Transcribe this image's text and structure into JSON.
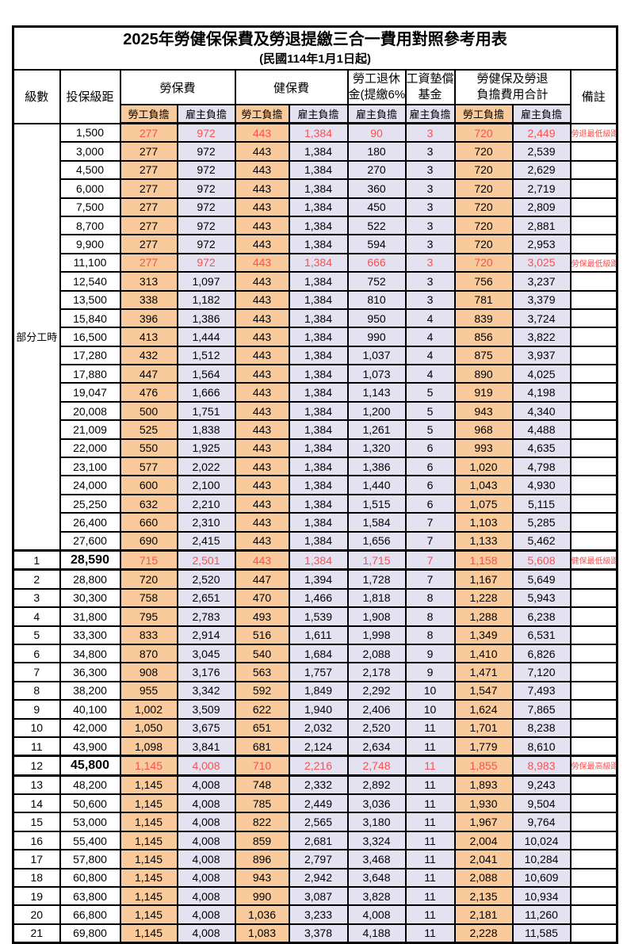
{
  "title": "2025年勞健保保費及勞退提繳三合一費用對照參考用表",
  "subtitle": "(民國114年1月1日起)",
  "colors": {
    "employee_col_bg": "#F9CB9C",
    "employer_col_bg": "#E4E1F1",
    "highlight_red": "#F85151",
    "border": "#000000"
  },
  "header": {
    "level": "級數",
    "salary": "投保級距",
    "labor_insurance": "勞保費",
    "health_insurance": "健保費",
    "pension_line1": "勞工退休",
    "pension_line2": "金(提繳6%)",
    "wage_fund_line1": "工資墊償",
    "wage_fund_line2": "基金",
    "total_line1": "勞健保及勞退",
    "total_line2": "負擔費用合計",
    "remark": "備註",
    "employee": "勞工負擔",
    "employer": "雇主負擔"
  },
  "part_time": {
    "label": "部分工時",
    "span": 23
  },
  "rows": [
    {
      "lv": "",
      "sal": "1,500",
      "v": [
        "277",
        "972",
        "443",
        "1,384",
        "90",
        "3",
        "720",
        "2,449"
      ],
      "note": "勞退最低級距",
      "red": true
    },
    {
      "lv": "",
      "sal": "3,000",
      "v": [
        "277",
        "972",
        "443",
        "1,384",
        "180",
        "3",
        "720",
        "2,539"
      ],
      "note": ""
    },
    {
      "lv": "",
      "sal": "4,500",
      "v": [
        "277",
        "972",
        "443",
        "1,384",
        "270",
        "3",
        "720",
        "2,629"
      ],
      "note": ""
    },
    {
      "lv": "",
      "sal": "6,000",
      "v": [
        "277",
        "972",
        "443",
        "1,384",
        "360",
        "3",
        "720",
        "2,719"
      ],
      "note": ""
    },
    {
      "lv": "",
      "sal": "7,500",
      "v": [
        "277",
        "972",
        "443",
        "1,384",
        "450",
        "3",
        "720",
        "2,809"
      ],
      "note": ""
    },
    {
      "lv": "",
      "sal": "8,700",
      "v": [
        "277",
        "972",
        "443",
        "1,384",
        "522",
        "3",
        "720",
        "2,881"
      ],
      "note": ""
    },
    {
      "lv": "",
      "sal": "9,900",
      "v": [
        "277",
        "972",
        "443",
        "1,384",
        "594",
        "3",
        "720",
        "2,953"
      ],
      "note": ""
    },
    {
      "lv": "",
      "sal": "11,100",
      "v": [
        "277",
        "972",
        "443",
        "1,384",
        "666",
        "3",
        "720",
        "3,025"
      ],
      "note": "勞保最低級距",
      "red": true
    },
    {
      "lv": "",
      "sal": "12,540",
      "v": [
        "313",
        "1,097",
        "443",
        "1,384",
        "752",
        "3",
        "756",
        "3,237"
      ],
      "note": ""
    },
    {
      "lv": "",
      "sal": "13,500",
      "v": [
        "338",
        "1,182",
        "443",
        "1,384",
        "810",
        "3",
        "781",
        "3,379"
      ],
      "note": ""
    },
    {
      "lv": "",
      "sal": "15,840",
      "v": [
        "396",
        "1,386",
        "443",
        "1,384",
        "950",
        "4",
        "839",
        "3,724"
      ],
      "note": ""
    },
    {
      "lv": "",
      "sal": "16,500",
      "v": [
        "413",
        "1,444",
        "443",
        "1,384",
        "990",
        "4",
        "856",
        "3,822"
      ],
      "note": ""
    },
    {
      "lv": "",
      "sal": "17,280",
      "v": [
        "432",
        "1,512",
        "443",
        "1,384",
        "1,037",
        "4",
        "875",
        "3,937"
      ],
      "note": ""
    },
    {
      "lv": "",
      "sal": "17,880",
      "v": [
        "447",
        "1,564",
        "443",
        "1,384",
        "1,073",
        "4",
        "890",
        "4,025"
      ],
      "note": ""
    },
    {
      "lv": "",
      "sal": "19,047",
      "v": [
        "476",
        "1,666",
        "443",
        "1,384",
        "1,143",
        "5",
        "919",
        "4,198"
      ],
      "note": ""
    },
    {
      "lv": "",
      "sal": "20,008",
      "v": [
        "500",
        "1,751",
        "443",
        "1,384",
        "1,200",
        "5",
        "943",
        "4,340"
      ],
      "note": ""
    },
    {
      "lv": "",
      "sal": "21,009",
      "v": [
        "525",
        "1,838",
        "443",
        "1,384",
        "1,261",
        "5",
        "968",
        "4,488"
      ],
      "note": ""
    },
    {
      "lv": "",
      "sal": "22,000",
      "v": [
        "550",
        "1,925",
        "443",
        "1,384",
        "1,320",
        "6",
        "993",
        "4,635"
      ],
      "note": ""
    },
    {
      "lv": "",
      "sal": "23,100",
      "v": [
        "577",
        "2,022",
        "443",
        "1,384",
        "1,386",
        "6",
        "1,020",
        "4,798"
      ],
      "note": ""
    },
    {
      "lv": "",
      "sal": "24,000",
      "v": [
        "600",
        "2,100",
        "443",
        "1,384",
        "1,440",
        "6",
        "1,043",
        "4,930"
      ],
      "note": ""
    },
    {
      "lv": "",
      "sal": "25,250",
      "v": [
        "632",
        "2,210",
        "443",
        "1,384",
        "1,515",
        "6",
        "1,075",
        "5,115"
      ],
      "note": ""
    },
    {
      "lv": "",
      "sal": "26,400",
      "v": [
        "660",
        "2,310",
        "443",
        "1,384",
        "1,584",
        "7",
        "1,103",
        "5,285"
      ],
      "note": ""
    },
    {
      "lv": "",
      "sal": "27,600",
      "v": [
        "690",
        "2,415",
        "443",
        "1,384",
        "1,656",
        "7",
        "1,133",
        "5,462"
      ],
      "note": ""
    },
    {
      "lv": "1",
      "sal": "28,590",
      "v": [
        "715",
        "2,501",
        "443",
        "1,384",
        "1,715",
        "7",
        "1,158",
        "5,608"
      ],
      "note": "健保最低級距",
      "red": true,
      "bold": true,
      "thick": true
    },
    {
      "lv": "2",
      "sal": "28,800",
      "v": [
        "720",
        "2,520",
        "447",
        "1,394",
        "1,728",
        "7",
        "1,167",
        "5,649"
      ],
      "note": ""
    },
    {
      "lv": "3",
      "sal": "30,300",
      "v": [
        "758",
        "2,651",
        "470",
        "1,466",
        "1,818",
        "8",
        "1,228",
        "5,943"
      ],
      "note": ""
    },
    {
      "lv": "4",
      "sal": "31,800",
      "v": [
        "795",
        "2,783",
        "493",
        "1,539",
        "1,908",
        "8",
        "1,288",
        "6,238"
      ],
      "note": ""
    },
    {
      "lv": "5",
      "sal": "33,300",
      "v": [
        "833",
        "2,914",
        "516",
        "1,611",
        "1,998",
        "8",
        "1,349",
        "6,531"
      ],
      "note": ""
    },
    {
      "lv": "6",
      "sal": "34,800",
      "v": [
        "870",
        "3,045",
        "540",
        "1,684",
        "2,088",
        "9",
        "1,410",
        "6,826"
      ],
      "note": ""
    },
    {
      "lv": "7",
      "sal": "36,300",
      "v": [
        "908",
        "3,176",
        "563",
        "1,757",
        "2,178",
        "9",
        "1,471",
        "7,120"
      ],
      "note": ""
    },
    {
      "lv": "8",
      "sal": "38,200",
      "v": [
        "955",
        "3,342",
        "592",
        "1,849",
        "2,292",
        "10",
        "1,547",
        "7,493"
      ],
      "note": ""
    },
    {
      "lv": "9",
      "sal": "40,100",
      "v": [
        "1,002",
        "3,509",
        "622",
        "1,940",
        "2,406",
        "10",
        "1,624",
        "7,865"
      ],
      "note": ""
    },
    {
      "lv": "10",
      "sal": "42,000",
      "v": [
        "1,050",
        "3,675",
        "651",
        "2,032",
        "2,520",
        "11",
        "1,701",
        "8,238"
      ],
      "note": ""
    },
    {
      "lv": "11",
      "sal": "43,900",
      "v": [
        "1,098",
        "3,841",
        "681",
        "2,124",
        "2,634",
        "11",
        "1,779",
        "8,610"
      ],
      "note": ""
    },
    {
      "lv": "12",
      "sal": "45,800",
      "v": [
        "1,145",
        "4,008",
        "710",
        "2,216",
        "2,748",
        "11",
        "1,855",
        "8,983"
      ],
      "note": "勞保最高級距",
      "red": true,
      "bold": true,
      "thick": true
    },
    {
      "lv": "13",
      "sal": "48,200",
      "v": [
        "1,145",
        "4,008",
        "748",
        "2,332",
        "2,892",
        "11",
        "1,893",
        "9,243"
      ],
      "note": ""
    },
    {
      "lv": "14",
      "sal": "50,600",
      "v": [
        "1,145",
        "4,008",
        "785",
        "2,449",
        "3,036",
        "11",
        "1,930",
        "9,504"
      ],
      "note": ""
    },
    {
      "lv": "15",
      "sal": "53,000",
      "v": [
        "1,145",
        "4,008",
        "822",
        "2,565",
        "3,180",
        "11",
        "1,967",
        "9,764"
      ],
      "note": ""
    },
    {
      "lv": "16",
      "sal": "55,400",
      "v": [
        "1,145",
        "4,008",
        "859",
        "2,681",
        "3,324",
        "11",
        "2,004",
        "10,024"
      ],
      "note": ""
    },
    {
      "lv": "17",
      "sal": "57,800",
      "v": [
        "1,145",
        "4,008",
        "896",
        "2,797",
        "3,468",
        "11",
        "2,041",
        "10,284"
      ],
      "note": ""
    },
    {
      "lv": "18",
      "sal": "60,800",
      "v": [
        "1,145",
        "4,008",
        "943",
        "2,942",
        "3,648",
        "11",
        "2,088",
        "10,609"
      ],
      "note": ""
    },
    {
      "lv": "19",
      "sal": "63,800",
      "v": [
        "1,145",
        "4,008",
        "990",
        "3,087",
        "3,828",
        "11",
        "2,135",
        "10,934"
      ],
      "note": ""
    },
    {
      "lv": "20",
      "sal": "66,800",
      "v": [
        "1,145",
        "4,008",
        "1,036",
        "3,233",
        "4,008",
        "11",
        "2,181",
        "11,260"
      ],
      "note": ""
    },
    {
      "lv": "21",
      "sal": "69,800",
      "v": [
        "1,145",
        "4,008",
        "1,083",
        "3,378",
        "4,188",
        "11",
        "2,228",
        "11,585"
      ],
      "note": ""
    }
  ],
  "value_column_types": [
    "emp",
    "er",
    "emp",
    "er",
    "er",
    "er",
    "emp",
    "er"
  ]
}
